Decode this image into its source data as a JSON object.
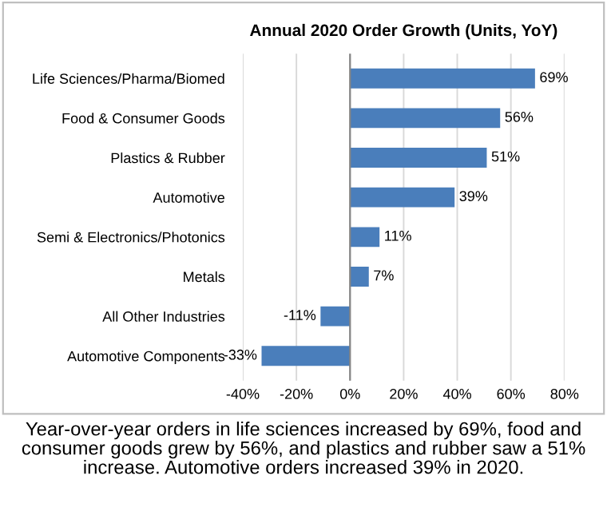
{
  "chart_data": {
    "type": "bar",
    "orientation": "horizontal",
    "title": "Annual 2020 Order Growth (Units, YoY)",
    "categories": [
      "Life Sciences/Pharma/Biomed",
      "Food & Consumer Goods",
      "Plastics & Rubber",
      "Automotive",
      "Semi & Electronics/Photonics",
      "Metals",
      "All Other Industries",
      "Automotive Components"
    ],
    "values": [
      69,
      56,
      51,
      39,
      11,
      7,
      -11,
      -33
    ],
    "value_labels": [
      "69%",
      "56%",
      "51%",
      "39%",
      "11%",
      "7%",
      "-11%",
      "-33%"
    ],
    "color": "#4a7ebb",
    "xlim": [
      -40,
      80
    ],
    "xticks": [
      {
        "value": -40,
        "label": "-40%"
      },
      {
        "value": -20,
        "label": "-20%"
      },
      {
        "value": 0,
        "label": "0%"
      },
      {
        "value": 20,
        "label": "20%"
      },
      {
        "value": 40,
        "label": "40%"
      },
      {
        "value": 60,
        "label": "60%"
      },
      {
        "value": 80,
        "label": "80%"
      }
    ],
    "grid": "x",
    "annotations": [
      "Year-over-year orders in life sciences increased by 69%, food and consumer goods grew by 56%, and plastics and rubber saw a 51% increase. Automotive orders increased 39% in 2020."
    ]
  }
}
